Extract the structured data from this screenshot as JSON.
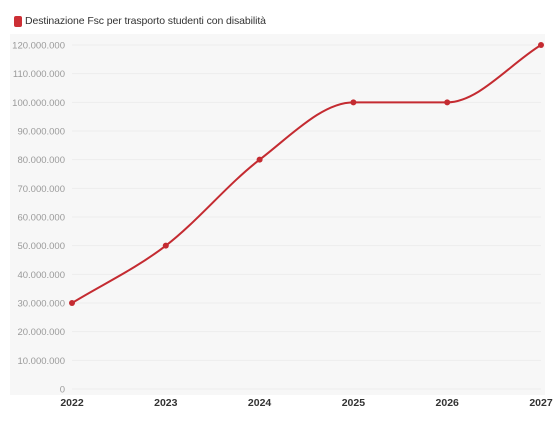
{
  "legend": {
    "label": "Destinazione Fsc per trasporto studenti con disabilità",
    "color": "#cc2f35"
  },
  "colors": {
    "line": "#c42b31",
    "plot_background": "#f7f7f7",
    "grid": "#ececec"
  },
  "chart_data": {
    "type": "line",
    "x": [
      "2022",
      "2023",
      "2024",
      "2025",
      "2026",
      "2027"
    ],
    "series": [
      {
        "name": "Destinazione Fsc per trasporto studenti con disabilità",
        "values": [
          30000000,
          50000000,
          80000000,
          100000000,
          100000000,
          120000000
        ]
      }
    ],
    "yticks": [
      {
        "value": 0,
        "label": "0"
      },
      {
        "value": 10000000,
        "label": "10.000.000"
      },
      {
        "value": 20000000,
        "label": "20.000.000"
      },
      {
        "value": 30000000,
        "label": "30.000.000"
      },
      {
        "value": 40000000,
        "label": "40.000.000"
      },
      {
        "value": 50000000,
        "label": "50.000.000"
      },
      {
        "value": 60000000,
        "label": "60.000.000"
      },
      {
        "value": 70000000,
        "label": "70.000.000"
      },
      {
        "value": 80000000,
        "label": "80.000.000"
      },
      {
        "value": 90000000,
        "label": "90.000.000"
      },
      {
        "value": 100000000,
        "label": "100.000.000"
      },
      {
        "value": 110000000,
        "label": "110.000.000"
      },
      {
        "value": 120000000,
        "label": "120.000.000"
      }
    ],
    "ylim": [
      0,
      120000000
    ],
    "grid": true,
    "legend_position": "top-left",
    "curve": "smooth"
  }
}
